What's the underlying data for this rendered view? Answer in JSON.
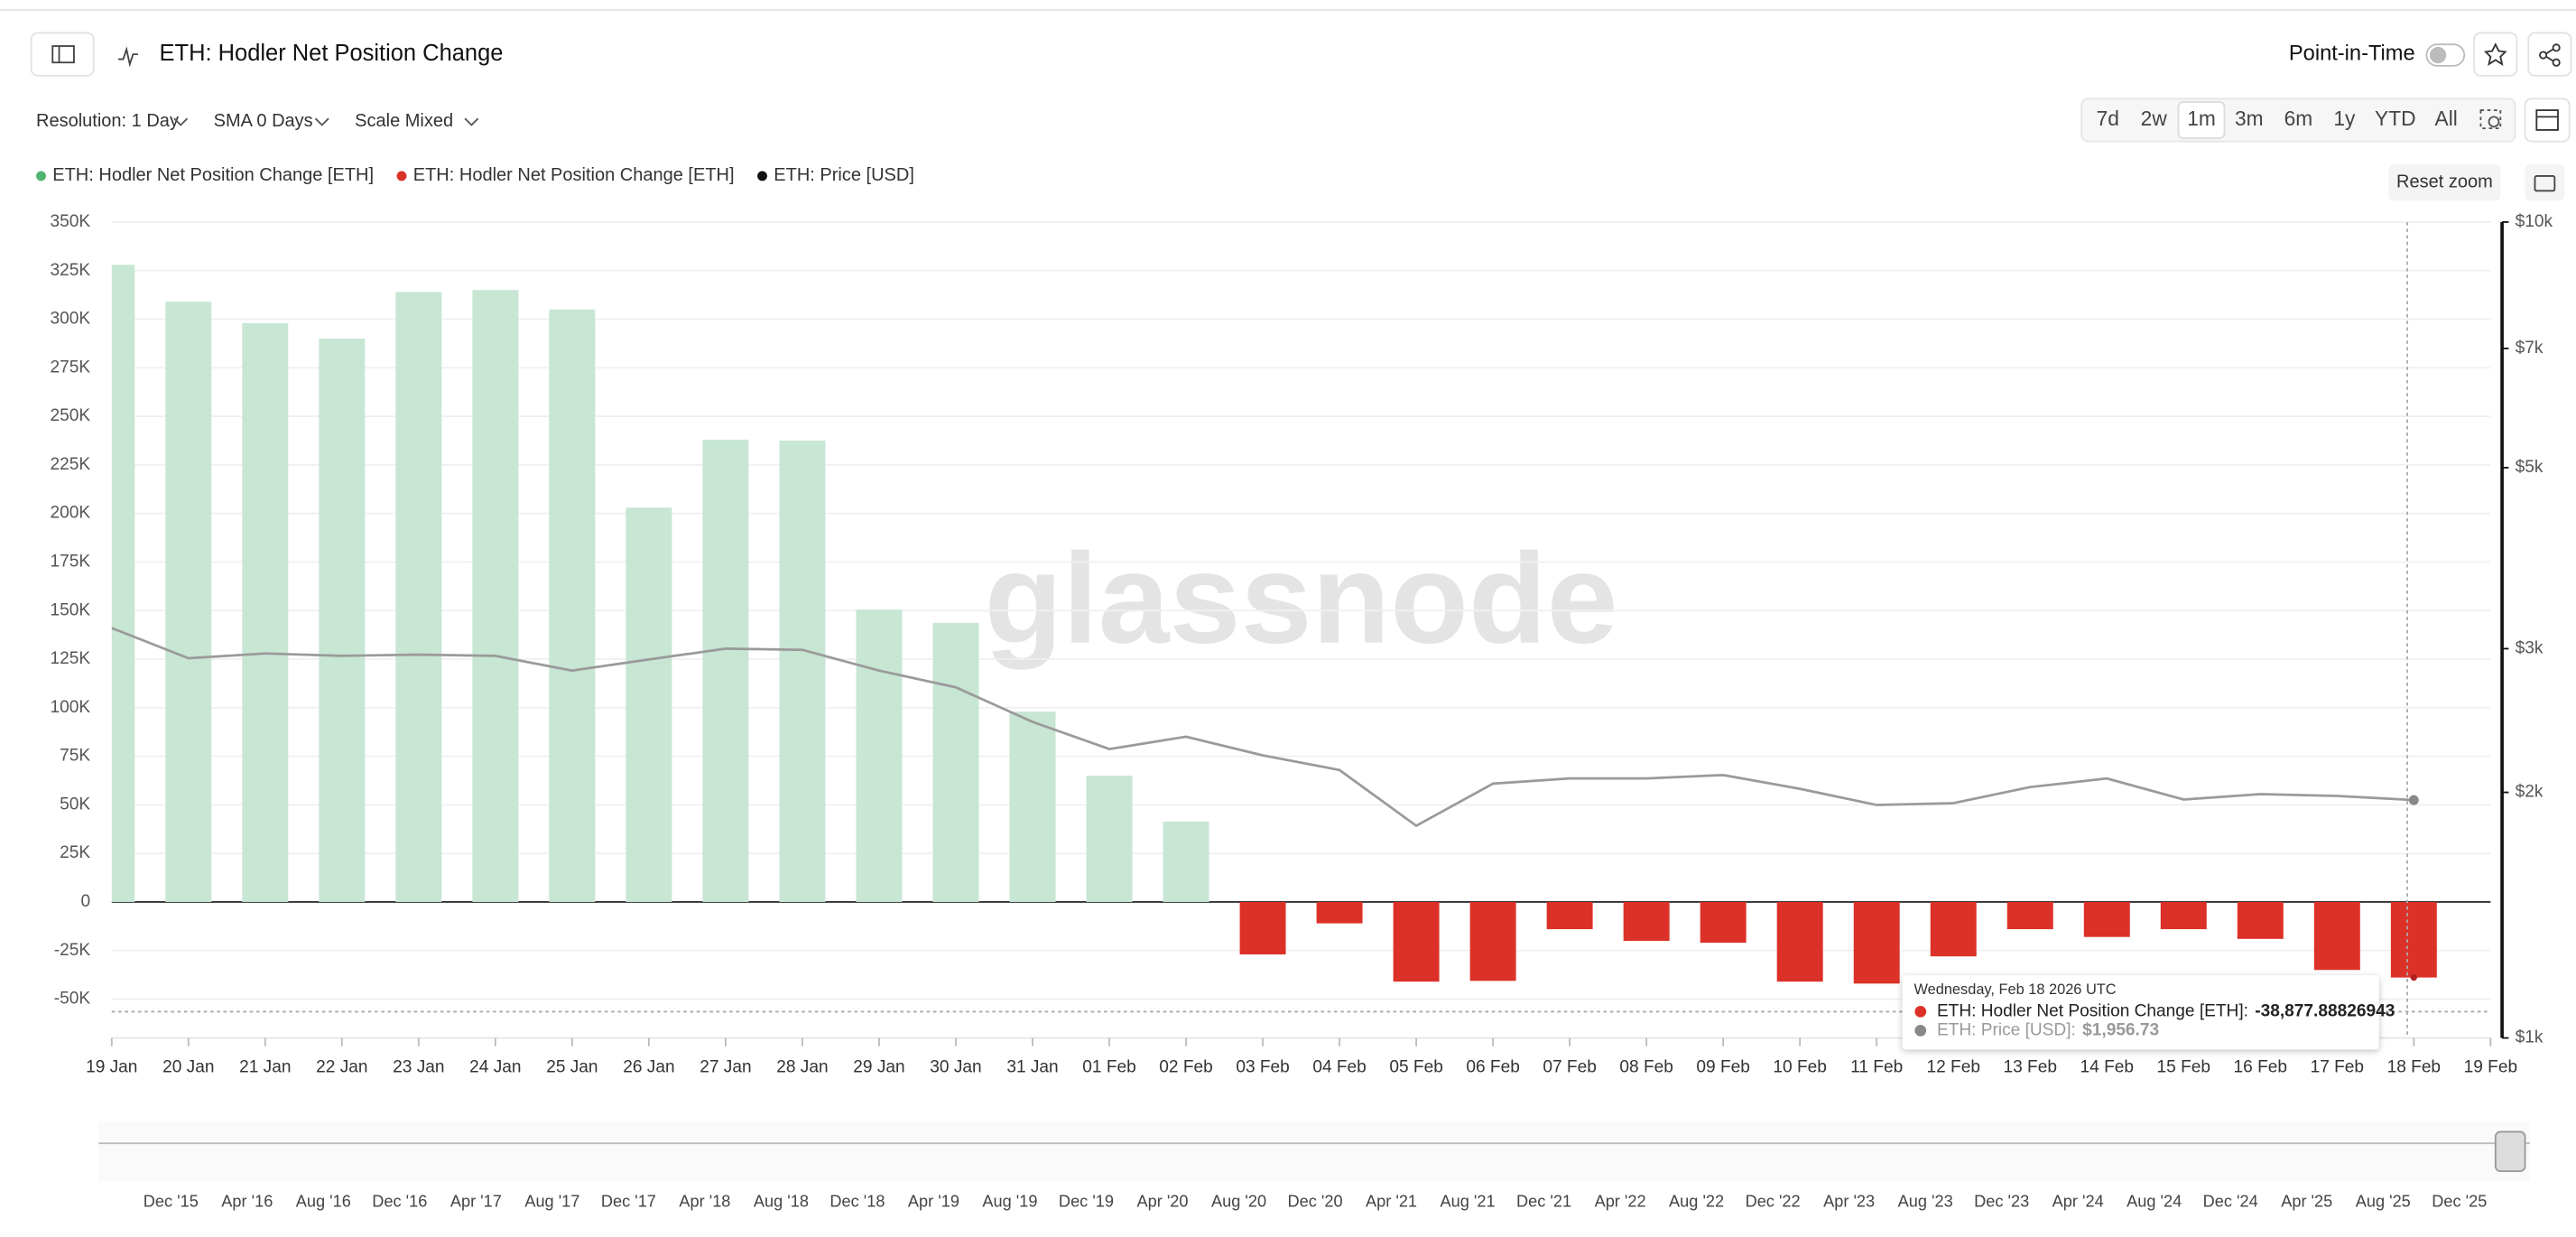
{
  "header": {
    "title": "ETH: Hodler Net Position Change",
    "toggle": "Point-in-Time"
  },
  "toolbar": {
    "resolution": "Resolution: 1 Day",
    "sma": "SMA 0 Days",
    "scale": "Scale Mixed",
    "ranges": [
      "7d",
      "2w",
      "1m",
      "3m",
      "6m",
      "1y",
      "YTD",
      "All"
    ],
    "reset": "Reset zoom"
  },
  "chart_data": {
    "type": "bar",
    "watermark": "glassnode",
    "categories": [
      "19 Jan",
      "20 Jan",
      "21 Jan",
      "22 Jan",
      "23 Jan",
      "24 Jan",
      "25 Jan",
      "26 Jan",
      "27 Jan",
      "28 Jan",
      "29 Jan",
      "30 Jan",
      "31 Jan",
      "01 Feb",
      "02 Feb",
      "03 Feb",
      "04 Feb",
      "05 Feb",
      "06 Feb",
      "07 Feb",
      "08 Feb",
      "09 Feb",
      "10 Feb",
      "11 Feb",
      "12 Feb",
      "13 Feb",
      "14 Feb",
      "15 Feb",
      "16 Feb",
      "17 Feb",
      "18 Feb",
      "19 Feb"
    ],
    "series": [
      {
        "name": "ETH: Hodler Net Position Change [ETH]",
        "color": "#c7e6d3",
        "legend_color": "#4fb46f",
        "values": [
          328000,
          309000,
          298000,
          290000,
          314000,
          315000,
          305000,
          203000,
          238000,
          237500,
          150500,
          143700,
          98000,
          65000,
          41400,
          null,
          null,
          null,
          null,
          null,
          null,
          null,
          null,
          null,
          null,
          null,
          null,
          null,
          null,
          null,
          null,
          null
        ]
      },
      {
        "name": "ETH: Hodler Net Position Change [ETH]",
        "color": "#dc3128",
        "legend_color": "#dc3128",
        "values": [
          null,
          null,
          null,
          null,
          null,
          null,
          null,
          null,
          null,
          null,
          null,
          null,
          null,
          null,
          null,
          -27000,
          -11000,
          -41000,
          -40600,
          -14000,
          -20000,
          -21000,
          -41000,
          -42000,
          -28000,
          -14000,
          -18000,
          -14000,
          -19000,
          -35000,
          -38877.88826943,
          null
        ]
      },
      {
        "name": "ETH: Price [USD]",
        "type": "line",
        "axis": "y2",
        "color": "#9a9a9a",
        "legend_color": "#111111",
        "values": [
          3180,
          2920,
          2960,
          2940,
          2950,
          2940,
          2820,
          2910,
          3000,
          2990,
          2820,
          2690,
          2440,
          2260,
          2340,
          2220,
          2130,
          1820,
          2050,
          2080,
          2080,
          2100,
          2020,
          1930,
          1940,
          2030,
          2080,
          1960,
          1990,
          1980,
          1956.73,
          null
        ]
      }
    ],
    "ylim": [
      -70000,
      350000
    ],
    "yticks": [
      {
        "value": -50000,
        "label": "-50K"
      },
      {
        "value": -25000,
        "label": "-25K"
      },
      0,
      {
        "value": 25000,
        "label": "25K"
      },
      {
        "value": 50000,
        "label": "50K"
      },
      {
        "value": 75000,
        "label": "75K"
      },
      {
        "value": 100000,
        "label": "100K"
      },
      {
        "value": 125000,
        "label": "125K"
      },
      {
        "value": 150000,
        "label": "150K"
      },
      {
        "value": 175000,
        "label": "175K"
      },
      {
        "value": 200000,
        "label": "200K"
      },
      {
        "value": 225000,
        "label": "225K"
      },
      {
        "value": 250000,
        "label": "250K"
      },
      {
        "value": 275000,
        "label": "275K"
      },
      {
        "value": 300000,
        "label": "300K"
      },
      {
        "value": 325000,
        "label": "325K"
      },
      {
        "value": 350000,
        "label": "350K"
      }
    ],
    "y2lim": [
      1000,
      10000
    ],
    "y2log": true,
    "y2ticks": [
      {
        "value": 1000,
        "label": "$1k"
      },
      {
        "value": 2000,
        "label": "$2k"
      },
      {
        "value": 3000,
        "label": "$3k"
      },
      {
        "value": 5000,
        "label": "$5k"
      },
      {
        "value": 7000,
        "label": "$7k"
      },
      {
        "value": 10000,
        "label": "$10k"
      }
    ],
    "grid": true,
    "tooltip": {
      "title": "Wednesday, Feb 18 2026 UTC",
      "items": [
        {
          "label": "ETH: Hodler Net Position Change [ETH]:",
          "value": "-38,877.88826943"
        },
        {
          "label": "ETH: Price [USD]:",
          "value": "$1,956.73"
        }
      ]
    }
  },
  "navigator": {
    "labels": [
      "Dec '15",
      "Apr '16",
      "Aug '16",
      "Dec '16",
      "Apr '17",
      "Aug '17",
      "Dec '17",
      "Apr '18",
      "Aug '18",
      "Dec '18",
      "Apr '19",
      "Aug '19",
      "Dec '19",
      "Apr '20",
      "Aug '20",
      "Dec '20",
      "Apr '21",
      "Aug '21",
      "Dec '21",
      "Apr '22",
      "Aug '22",
      "Dec '22",
      "Apr '23",
      "Aug '23",
      "Dec '23",
      "Apr '24",
      "Aug '24",
      "Dec '24",
      "Apr '25",
      "Aug '25",
      "Dec '25"
    ]
  }
}
